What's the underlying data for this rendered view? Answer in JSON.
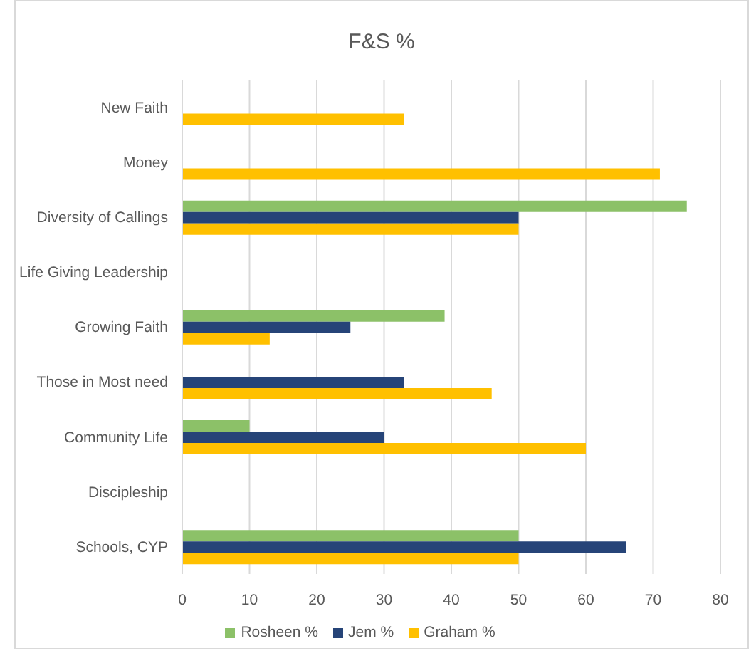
{
  "chart_data": {
    "type": "bar",
    "orientation": "horizontal",
    "title": "F&S %",
    "categories": [
      "New Faith",
      "Money",
      "Diversity of Callings",
      "Life Giving Leadership",
      "Growing Faith",
      "Those in Most need",
      "Community Life",
      "Discipleship",
      "Schools, CYP"
    ],
    "series": [
      {
        "name": "Rosheen %",
        "color": "#8cc168",
        "values": [
          null,
          null,
          75,
          null,
          39,
          null,
          10,
          null,
          50
        ]
      },
      {
        "name": "Jem %",
        "color": "#264478",
        "values": [
          null,
          null,
          50,
          null,
          25,
          33,
          30,
          null,
          66
        ]
      },
      {
        "name": "Graham %",
        "color": "#ffc000",
        "values": [
          33,
          71,
          50,
          null,
          13,
          46,
          60,
          null,
          50
        ]
      }
    ],
    "xlim": [
      0,
      80
    ],
    "xticks": [
      0,
      10,
      20,
      30,
      40,
      50,
      60,
      70,
      80
    ],
    "grid": "x",
    "legend": "bottom"
  }
}
